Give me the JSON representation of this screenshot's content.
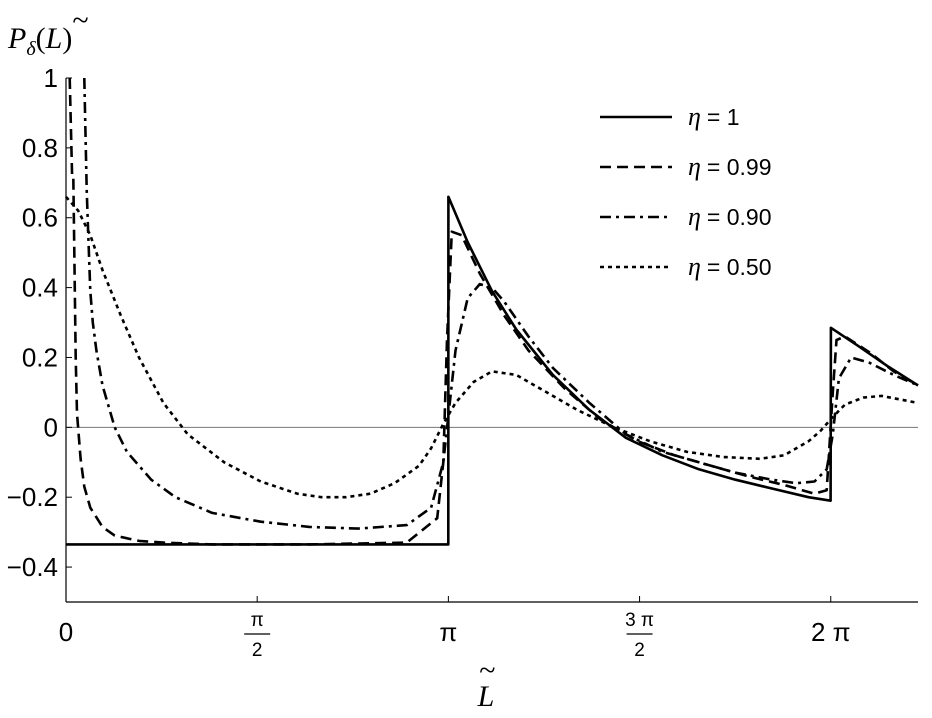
{
  "chart_data": {
    "type": "line",
    "ylabel": "P_δ(L̃)",
    "ylabel_parts": {
      "main": "P",
      "sub": "δ",
      "open": "(",
      "var": "L",
      "close": ")"
    },
    "xlabel": "L̃",
    "xlim": [
      0,
      7.0
    ],
    "ylim": [
      -0.5,
      1.0
    ],
    "yticks": [
      {
        "value": -0.4,
        "label": "−0.4"
      },
      {
        "value": -0.2,
        "label": "−0.2"
      },
      {
        "value": 0,
        "label": "0"
      },
      {
        "value": 0.2,
        "label": "0.2"
      },
      {
        "value": 0.4,
        "label": "0.4"
      },
      {
        "value": 0.6,
        "label": "0.6"
      },
      {
        "value": 0.8,
        "label": "0.8"
      },
      {
        "value": 1,
        "label": "1"
      }
    ],
    "xticks": [
      {
        "value": 0,
        "label": "0"
      },
      {
        "value": 1.5708,
        "num": "π",
        "den": "2"
      },
      {
        "value": 3.1416,
        "label": "π"
      },
      {
        "value": 4.7124,
        "num": "3 π",
        "den": "2"
      },
      {
        "value": 6.2832,
        "label": "2 π"
      }
    ],
    "grid": false,
    "zero_line": true,
    "legend_position": "top-right",
    "series": [
      {
        "name": "η = 1",
        "eta_symbol": "η",
        "eta_value": "= 1",
        "style": "solid",
        "x": [
          0,
          0.5,
          1.0,
          1.5,
          2.0,
          2.5,
          3.0,
          3.141,
          3.142,
          3.3,
          3.5,
          3.7,
          4.0,
          4.3,
          4.6,
          4.9,
          5.2,
          5.5,
          5.8,
          6.1,
          6.282,
          6.284,
          6.5,
          6.75,
          7.0
        ],
        "y": [
          -0.335,
          -0.335,
          -0.335,
          -0.335,
          -0.335,
          -0.335,
          -0.335,
          -0.335,
          0.66,
          0.53,
          0.39,
          0.28,
          0.15,
          0.05,
          -0.03,
          -0.08,
          -0.12,
          -0.15,
          -0.175,
          -0.2,
          -0.21,
          0.285,
          0.235,
          0.175,
          0.12
        ]
      },
      {
        "name": "η = 0.99",
        "eta_symbol": "η",
        "eta_value": "= 0.99",
        "style": "dashed",
        "x": [
          0.03,
          0.05,
          0.06,
          0.08,
          0.09,
          0.12,
          0.15,
          0.2,
          0.3,
          0.4,
          0.6,
          0.8,
          1.2,
          2.0,
          2.8,
          3.05,
          3.1,
          3.13,
          3.17,
          3.25,
          3.4,
          3.6,
          3.8,
          4.1,
          4.4,
          4.7,
          5.0,
          5.3,
          5.6,
          5.9,
          6.15,
          6.25,
          6.3,
          6.33,
          6.4,
          6.6,
          6.8,
          7.0
        ],
        "y": [
          1.0,
          0.72,
          0.72,
          0.2,
          0.04,
          -0.09,
          -0.17,
          -0.23,
          -0.285,
          -0.31,
          -0.325,
          -0.33,
          -0.335,
          -0.335,
          -0.33,
          -0.26,
          -0.1,
          0.25,
          0.56,
          0.55,
          0.44,
          0.32,
          0.22,
          0.11,
          0.02,
          -0.04,
          -0.08,
          -0.11,
          -0.14,
          -0.165,
          -0.19,
          -0.18,
          0.1,
          0.25,
          0.26,
          0.215,
          0.16,
          0.12
        ]
      },
      {
        "name": "η = 0.90",
        "eta_symbol": "η",
        "eta_value": "= 0.90",
        "style": "dashdot",
        "x": [
          0.15,
          0.17,
          0.18,
          0.2,
          0.22,
          0.25,
          0.3,
          0.4,
          0.5,
          0.7,
          0.9,
          1.2,
          1.6,
          2.0,
          2.4,
          2.8,
          3.0,
          3.1,
          3.2,
          3.3,
          3.4,
          3.5,
          3.6,
          3.8,
          4.0,
          4.3,
          4.6,
          4.9,
          5.2,
          5.5,
          5.8,
          6.0,
          6.15,
          6.25,
          6.3,
          6.35,
          6.45,
          6.6,
          6.8,
          7.0
        ],
        "y": [
          1.0,
          0.68,
          0.58,
          0.39,
          0.3,
          0.22,
          0.12,
          0.0,
          -0.07,
          -0.15,
          -0.2,
          -0.245,
          -0.27,
          -0.285,
          -0.29,
          -0.28,
          -0.23,
          -0.1,
          0.22,
          0.37,
          0.41,
          0.4,
          0.36,
          0.26,
          0.17,
          0.07,
          -0.02,
          -0.07,
          -0.1,
          -0.13,
          -0.15,
          -0.16,
          -0.155,
          -0.12,
          -0.02,
          0.14,
          0.2,
          0.185,
          0.15,
          0.12
        ]
      },
      {
        "name": "η = 0.50",
        "eta_symbol": "η",
        "eta_value": "= 0.50",
        "style": "dotted",
        "x": [
          0.0,
          0.1,
          0.2,
          0.3,
          0.45,
          0.6,
          0.8,
          1.0,
          1.3,
          1.6,
          1.9,
          2.1,
          2.3,
          2.5,
          2.7,
          2.9,
          3.0,
          3.1,
          3.2,
          3.35,
          3.5,
          3.7,
          3.9,
          4.2,
          4.5,
          4.8,
          5.1,
          5.4,
          5.7,
          5.9,
          6.1,
          6.2,
          6.3,
          6.4,
          6.55,
          6.7,
          6.85,
          7.0
        ],
        "y": [
          0.66,
          0.62,
          0.55,
          0.45,
          0.32,
          0.2,
          0.07,
          -0.02,
          -0.1,
          -0.155,
          -0.19,
          -0.2,
          -0.2,
          -0.19,
          -0.16,
          -0.11,
          -0.06,
          0.01,
          0.07,
          0.13,
          0.16,
          0.15,
          0.11,
          0.05,
          0.0,
          -0.04,
          -0.07,
          -0.085,
          -0.09,
          -0.08,
          -0.04,
          -0.01,
          0.03,
          0.065,
          0.085,
          0.09,
          0.08,
          0.07
        ]
      }
    ]
  }
}
